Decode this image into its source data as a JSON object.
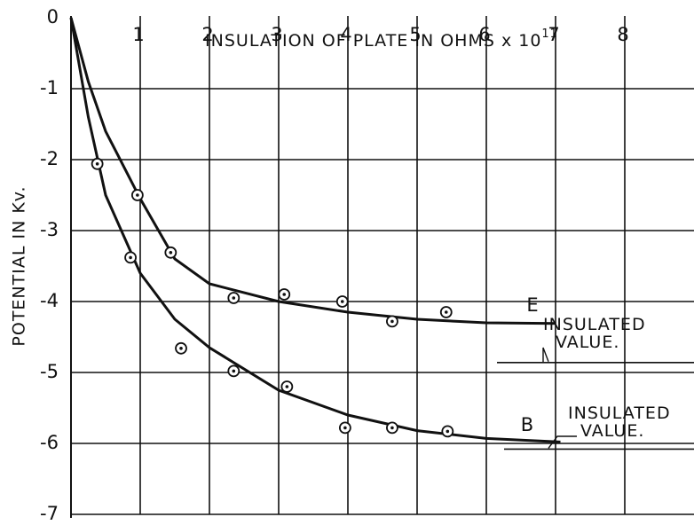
{
  "chart_data": {
    "type": "scatter",
    "xlabel": "INSULATION OF PLATE IN OHMS x 10",
    "xlabel_exponent": "11",
    "ylabel": "POTENTIAL IN Kv.",
    "xlim": [
      0,
      9
    ],
    "ylim": [
      -7,
      0
    ],
    "xticks": [
      1,
      2,
      3,
      4,
      5,
      6,
      7,
      8
    ],
    "yticks": [
      0,
      -1,
      -2,
      -3,
      -4,
      -5,
      -6,
      -7
    ],
    "grid": true,
    "series": [
      {
        "name": "E",
        "color": "#111111",
        "x": [
          0.96,
          1.44,
          2.35,
          3.08,
          3.92,
          4.64,
          5.42
        ],
        "values": [
          -2.5,
          -3.31,
          -3.95,
          -3.9,
          -4.0,
          -4.28,
          -4.15
        ],
        "curve": {
          "x": [
            0,
            0.25,
            0.5,
            1,
            1.5,
            2,
            3,
            4,
            5,
            6,
            7
          ],
          "y": [
            0,
            -0.9,
            -1.6,
            -2.55,
            -3.4,
            -3.75,
            -4.0,
            -4.15,
            -4.25,
            -4.3,
            -4.31
          ]
        },
        "insulated_label": "INSULATED VALUE.",
        "insulated_value": -4.86
      },
      {
        "name": "B",
        "color": "#111111",
        "x": [
          0.38,
          0.86,
          1.59,
          2.35,
          3.12,
          3.96,
          4.64,
          5.44
        ],
        "values": [
          -2.06,
          -3.38,
          -4.66,
          -4.98,
          -5.2,
          -5.78,
          -5.78,
          -5.83
        ],
        "curve": {
          "x": [
            0,
            0.25,
            0.5,
            1,
            1.5,
            2,
            3,
            4,
            5,
            6,
            7.07
          ],
          "y": [
            0,
            -1.4,
            -2.5,
            -3.6,
            -4.25,
            -4.65,
            -5.25,
            -5.6,
            -5.82,
            -5.93,
            -5.98
          ]
        },
        "insulated_label": "INSULATED VALUE.",
        "insulated_value": -6.08
      }
    ]
  }
}
